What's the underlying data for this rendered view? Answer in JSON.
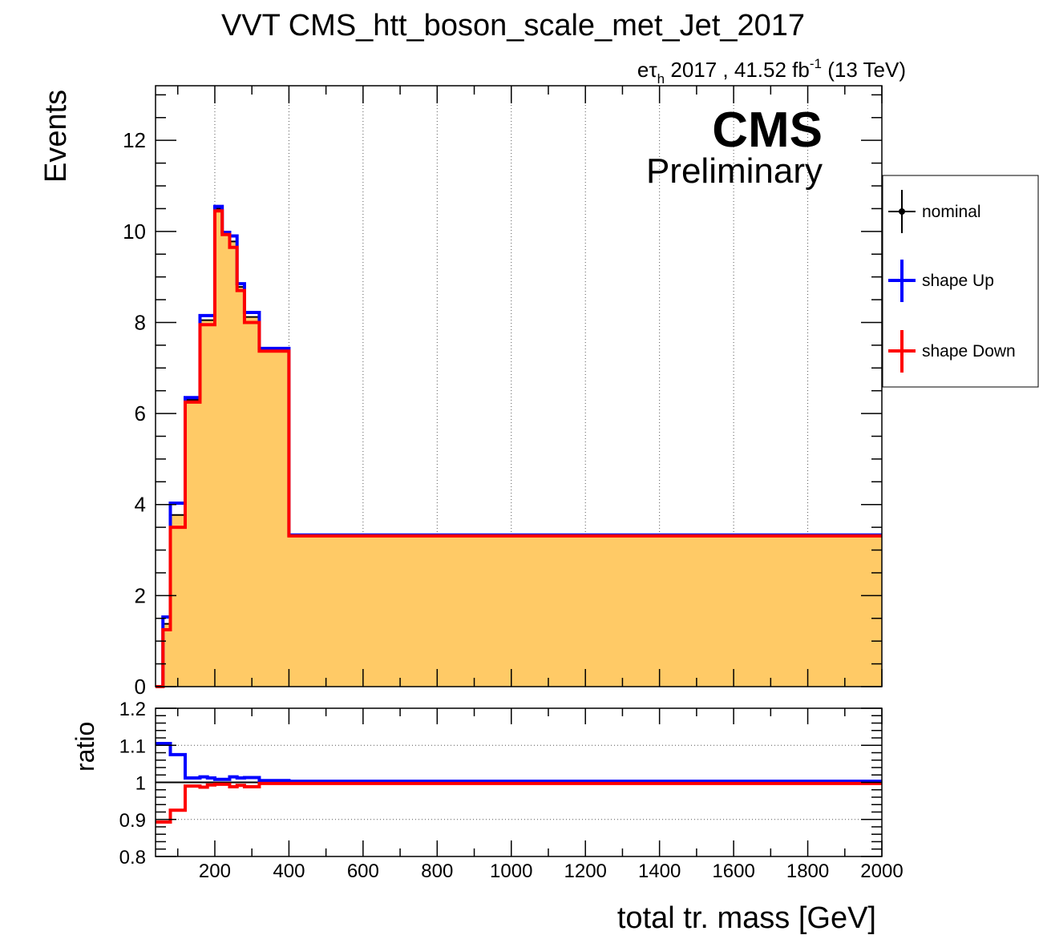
{
  "chart_data": [
    {
      "type": "line",
      "panel": "main",
      "title": "VVT CMS_htt_boson_scale_met_Jet_2017",
      "lumi_label": {
        "channel_e": "e",
        "channel_tau": "τ",
        "channel_sub": "h",
        "text": " 2017 , 41.52 fb",
        "sup": "-1",
        "energy": " (13 TeV)"
      },
      "cms_label": "CMS",
      "cms_sublabel": "Preliminary",
      "ylabel": "Events",
      "xlabel": "total tr. mass [GeV]",
      "xlim": [
        40,
        2000
      ],
      "ylim": [
        0,
        13.2
      ],
      "y_ticks": [
        0,
        2,
        4,
        6,
        8,
        10,
        12
      ],
      "y_tick_labels": [
        "0",
        "2",
        "4",
        "6",
        "8",
        "10",
        "12"
      ],
      "x_grid": [
        200,
        400,
        600,
        800,
        1000,
        1200,
        1400,
        1600,
        1800
      ],
      "grid": "vertical dotted",
      "bin_edges": [
        40,
        60,
        80,
        100,
        120,
        140,
        160,
        180,
        200,
        220,
        240,
        260,
        280,
        300,
        320,
        340,
        360,
        380,
        400,
        2000
      ],
      "series": [
        {
          "name": "nominal",
          "color": "#000000",
          "fill": "#ffca66",
          "values": [
            0,
            1.38,
            3.77,
            3.77,
            6.3,
            6.3,
            8.05,
            8.05,
            10.5,
            9.95,
            9.78,
            8.78,
            8.12,
            8.12,
            7.4,
            7.4,
            7.4,
            7.4,
            3.32
          ]
        },
        {
          "name": "shape Up",
          "color": "#0000ff",
          "values": [
            0,
            1.53,
            4.03,
            4.03,
            6.35,
            6.35,
            8.15,
            8.15,
            10.55,
            9.98,
            9.9,
            8.85,
            8.22,
            8.22,
            7.43,
            7.43,
            7.43,
            7.43,
            3.33
          ]
        },
        {
          "name": "shape Down",
          "color": "#ff0000",
          "values": [
            0,
            1.25,
            3.5,
            3.5,
            6.25,
            6.25,
            7.95,
            7.95,
            10.45,
            9.93,
            9.65,
            8.7,
            8.0,
            8.0,
            7.37,
            7.37,
            7.37,
            7.37,
            3.31
          ]
        }
      ],
      "legend": {
        "placement": "right-outside",
        "entries": [
          "nominal",
          "shape Up",
          "shape Down"
        ]
      }
    },
    {
      "type": "line",
      "panel": "ratio",
      "ylabel": "ratio",
      "xlabel": "total tr. mass [GeV]",
      "xlim": [
        40,
        2000
      ],
      "ylim": [
        0.8,
        1.2
      ],
      "y_ticks": [
        0.8,
        0.9,
        1.0,
        1.1,
        1.2
      ],
      "y_tick_labels": [
        "0.8",
        "0.9",
        "1",
        "1.1",
        "1.2"
      ],
      "x_ticks": [
        200,
        400,
        600,
        800,
        1000,
        1200,
        1400,
        1600,
        1800,
        2000
      ],
      "x_tick_labels": [
        "200",
        "400",
        "600",
        "800",
        "1000",
        "1200",
        "1400",
        "1600",
        "1800",
        "2000"
      ],
      "grid": "horizontal dotted",
      "reference_line": 1.0,
      "bin_edges": [
        40,
        60,
        80,
        100,
        120,
        140,
        160,
        180,
        200,
        220,
        240,
        260,
        280,
        300,
        320,
        340,
        360,
        380,
        400,
        2000
      ],
      "series": [
        {
          "name": "shape Up",
          "color": "#0000ff",
          "values": [
            1.105,
            1.105,
            1.075,
            1.075,
            1.012,
            1.012,
            1.015,
            1.012,
            1.008,
            1.008,
            1.015,
            1.012,
            1.013,
            1.013,
            1.005,
            1.005,
            1.005,
            1.005,
            1.003
          ]
        },
        {
          "name": "shape Down",
          "color": "#ff0000",
          "values": [
            0.893,
            0.893,
            0.925,
            0.925,
            0.99,
            0.99,
            0.987,
            0.993,
            0.995,
            0.995,
            0.988,
            0.992,
            0.988,
            0.988,
            0.997,
            0.997,
            0.997,
            0.997,
            0.997
          ]
        }
      ]
    }
  ]
}
